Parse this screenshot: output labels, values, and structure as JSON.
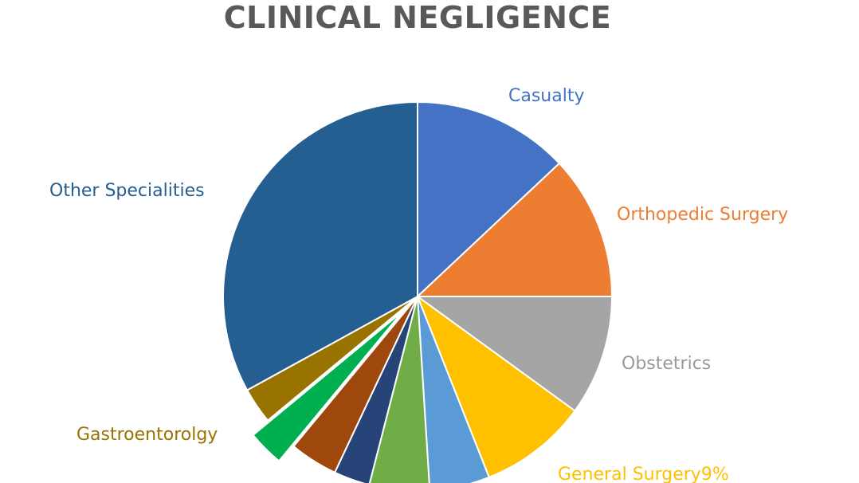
{
  "chart_data": {
    "type": "pie",
    "title": "CLINICAL NEGLIGENCE",
    "slices": [
      {
        "label": "Casualty",
        "value": 13,
        "color": "#4472C4"
      },
      {
        "label": "Orthopedic Surgery",
        "value": 12,
        "color": "#ED7D31"
      },
      {
        "label": "Obstetrics",
        "value": 10,
        "color": "#A5A5A5"
      },
      {
        "label": "General Surgery9%",
        "value": 9,
        "color": "#FFC000"
      },
      {
        "label": "",
        "value": 5,
        "color": "#5B9BD5"
      },
      {
        "label": "",
        "value": 5,
        "color": "#70AD47"
      },
      {
        "label": "",
        "value": 3,
        "color": "#264478"
      },
      {
        "label": "",
        "value": 4,
        "color": "#9E480E"
      },
      {
        "label": "",
        "value": 3,
        "color": "#00B050",
        "exploded": true
      },
      {
        "label": "Gastroentorolgy",
        "value": 3,
        "color": "#997300"
      },
      {
        "label": "Other Specialities",
        "value": 33,
        "color": "#255E91"
      }
    ]
  }
}
